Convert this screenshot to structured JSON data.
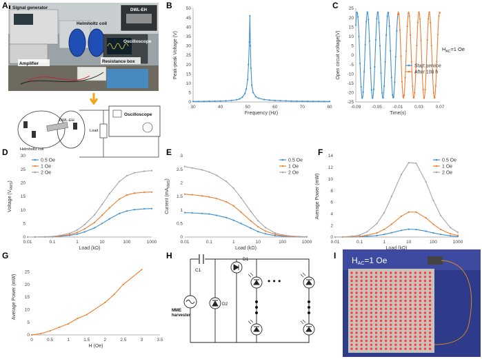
{
  "panels": {
    "A": {
      "letter": "A",
      "photo_labels": [
        "Signal generator",
        "DWL-EH",
        "Helmholtz coil",
        "Oscilloscope",
        "Amplifier",
        "Resistance box"
      ],
      "schematic_labels": {
        "device": "DWL-EH",
        "load": "Load",
        "scope": "Oscilloscope",
        "coil": "Helmholtz coil"
      }
    },
    "B": {
      "letter": "B"
    },
    "C": {
      "letter": "C",
      "annotation": "H"
    },
    "D": {
      "letter": "D"
    },
    "E": {
      "letter": "E"
    },
    "F": {
      "letter": "F"
    },
    "G": {
      "letter": "G"
    },
    "H": {
      "letter": "H",
      "labels": {
        "c1": "C1",
        "d1": "D1",
        "d2": "D2",
        "source": "MME harvester",
        "dots": "• • •"
      }
    },
    "I": {
      "letter": "I",
      "label_main": "H",
      "label_sub": "AC",
      "label_value": "=1 Oe"
    }
  },
  "chart_data": [
    {
      "panel": "B",
      "type": "line",
      "title": "",
      "xlabel": "Frequency (Hz)",
      "ylabel": "Peak-peak Voltage (V)",
      "xlim": [
        30,
        80
      ],
      "ylim": [
        0,
        50
      ],
      "xticks": [
        30,
        40,
        50,
        60,
        70,
        80
      ],
      "yticks": [
        0,
        5,
        10,
        15,
        20,
        25,
        30,
        35,
        40,
        45,
        50
      ],
      "grid": false,
      "color": "#3d8fd1",
      "x": [
        30,
        32,
        34,
        36,
        38,
        40,
        42,
        44,
        46,
        47,
        48,
        49,
        49.5,
        50,
        50.3,
        50.6,
        50.8,
        51,
        51.2,
        51.5,
        52,
        53,
        54,
        56,
        58,
        60,
        62,
        64,
        66,
        68,
        70,
        72,
        74,
        76,
        78,
        80
      ],
      "y": [
        0.3,
        0.3,
        0.35,
        0.4,
        0.45,
        0.5,
        0.6,
        0.8,
        1.2,
        1.6,
        2.5,
        4.5,
        7,
        12,
        20,
        32,
        46,
        30,
        18,
        9,
        5,
        2.8,
        2,
        1.3,
        1,
        0.8,
        0.7,
        0.6,
        0.5,
        0.45,
        0.4,
        0.4,
        0.35,
        0.35,
        0.3,
        0.3
      ]
    },
    {
      "panel": "C",
      "type": "line",
      "title": "",
      "xlabel": "Time(s)",
      "ylabel": "Open circuit voltage(V)",
      "xlim": [
        -0.09,
        0.07
      ],
      "ylim": [
        -25,
        25
      ],
      "xticks": [
        -0.09,
        -0.05,
        -0.01,
        0.03,
        0.07
      ],
      "yticks": [
        -25,
        -20,
        -15,
        -10,
        -5,
        0,
        5,
        10,
        15,
        20,
        25
      ],
      "grid": false,
      "legend_position": "right",
      "annotation": "HAC=1 Oe",
      "series": [
        {
          "name": "Start service",
          "color": "#3d8fd1",
          "t_start": -0.09,
          "t_end": -0.0101,
          "amplitude": 23,
          "frequency_hz": 51,
          "phase_ref": -0.0875
        },
        {
          "name": "After 100 h",
          "color": "#ed7d31",
          "t_start": -0.0101,
          "t_end": 0.07,
          "amplitude": 23,
          "frequency_hz": 51,
          "phase_ref": -0.0875
        }
      ]
    },
    {
      "panel": "D",
      "type": "line",
      "title": "",
      "xlabel": "Load (kΩ)",
      "ylabel": "Voltage (V",
      "ylabel_sub": "RMS",
      "ylabel_end": ")",
      "xscale": "log",
      "xlim": [
        0.01,
        1000
      ],
      "ylim": [
        0,
        30
      ],
      "xticks": [
        0.01,
        0.1,
        1,
        10,
        100,
        1000
      ],
      "yticks": [
        0,
        5,
        10,
        15,
        20,
        25,
        30
      ],
      "xticklabels": [
        "0.01",
        "0.1",
        "1",
        "10",
        "100",
        "1000"
      ],
      "grid": false,
      "legend_position": "top-left",
      "x": [
        0.01,
        0.02,
        0.05,
        0.1,
        0.2,
        0.5,
        1,
        2,
        5,
        10,
        20,
        50,
        100,
        200,
        500,
        1000
      ],
      "series": [
        {
          "name": "0.5 Oe",
          "color": "#3d8fd1",
          "values": [
            0,
            0,
            0.05,
            0.1,
            0.25,
            0.6,
            1.1,
            1.9,
            3.4,
            5,
            6.7,
            8.7,
            9.6,
            10.1,
            10.4,
            10.5
          ]
        },
        {
          "name": "1 Oe",
          "color": "#ed7d31",
          "values": [
            0,
            0,
            0.05,
            0.15,
            0.4,
            0.9,
            1.7,
            3,
            5.4,
            8,
            10.8,
            14,
            15.5,
            16.2,
            16.5,
            16.6
          ]
        },
        {
          "name": "2 Oe",
          "color": "#a5a5a5",
          "values": [
            0,
            0.02,
            0.1,
            0.2,
            0.6,
            1.4,
            2.6,
            4.6,
            8.2,
            12,
            16,
            20.5,
            22.6,
            23.7,
            24.3,
            24.5
          ]
        }
      ]
    },
    {
      "panel": "E",
      "type": "line",
      "title": "",
      "xlabel": "Load (kΩ)",
      "ylabel": "Current (mA",
      "ylabel_sub": "RMS",
      "ylabel_end": ")",
      "xscale": "log",
      "xlim": [
        0.01,
        1000
      ],
      "ylim": [
        0,
        3
      ],
      "xticks": [
        0.01,
        0.1,
        1,
        10,
        100,
        1000
      ],
      "yticks": [
        0,
        0.5,
        1,
        1.5,
        2,
        2.5,
        3
      ],
      "xticklabels": [
        "0.01",
        "0.1",
        "1",
        "10",
        "100",
        "1000"
      ],
      "grid": false,
      "legend_position": "top-right",
      "x": [
        0.01,
        0.02,
        0.05,
        0.1,
        0.2,
        0.5,
        1,
        2,
        5,
        10,
        20,
        50,
        100,
        200,
        500,
        1000
      ],
      "series": [
        {
          "name": "0.5 Oe",
          "color": "#3d8fd1",
          "values": [
            0.9,
            0.89,
            0.87,
            0.85,
            0.8,
            0.72,
            0.62,
            0.5,
            0.33,
            0.2,
            0.12,
            0.05,
            0.03,
            0.015,
            0.008,
            0.005
          ]
        },
        {
          "name": "1 Oe",
          "color": "#ed7d31",
          "values": [
            1.58,
            1.56,
            1.52,
            1.48,
            1.42,
            1.3,
            1.15,
            0.92,
            0.6,
            0.38,
            0.22,
            0.1,
            0.05,
            0.025,
            0.012,
            0.008
          ]
        },
        {
          "name": "2 Oe",
          "color": "#a5a5a5",
          "values": [
            2.6,
            2.55,
            2.48,
            2.4,
            2.28,
            2.05,
            1.8,
            1.45,
            0.95,
            0.6,
            0.35,
            0.15,
            0.08,
            0.04,
            0.02,
            0.01
          ]
        }
      ]
    },
    {
      "panel": "F",
      "type": "line",
      "title": "",
      "xlabel": "Load (kΩ)",
      "ylabel": "Average Power (mW)",
      "xscale": "log",
      "xlim": [
        0.01,
        1000
      ],
      "ylim": [
        0,
        14
      ],
      "xticks": [
        0.01,
        0.1,
        1,
        10,
        100,
        1000
      ],
      "yticks": [
        0,
        2,
        4,
        6,
        8,
        10,
        12,
        14
      ],
      "xticklabels": [
        "0.01",
        "0.1",
        "1",
        "10",
        "100",
        "1000"
      ],
      "grid": false,
      "legend_position": "top-right",
      "x": [
        0.01,
        0.02,
        0.05,
        0.1,
        0.2,
        0.5,
        1,
        2,
        5,
        10,
        20,
        50,
        100,
        200,
        500,
        1000
      ],
      "series": [
        {
          "name": "0.5 Oe",
          "color": "#3d8fd1",
          "values": [
            0,
            0,
            0.04,
            0.07,
            0.13,
            0.25,
            0.45,
            0.75,
            1.15,
            1.35,
            1.3,
            1.0,
            0.7,
            0.45,
            0.2,
            0.1
          ]
        },
        {
          "name": "1 Oe",
          "color": "#ed7d31",
          "values": [
            0,
            0.01,
            0.06,
            0.12,
            0.3,
            0.7,
            1.3,
            2.2,
            3.6,
            4.3,
            4.3,
            3.3,
            2.2,
            1.3,
            0.55,
            0.28
          ]
        },
        {
          "name": "2 Oe",
          "color": "#a5a5a5",
          "values": [
            0,
            0.02,
            0.15,
            0.35,
            0.9,
            2.3,
            4.2,
            7,
            10.8,
            12.8,
            12.7,
            9.5,
            6.3,
            3.7,
            1.6,
            0.8
          ]
        }
      ]
    },
    {
      "panel": "G",
      "type": "line",
      "title": "",
      "xlabel": "H (Oe)",
      "ylabel": "Average Power (mW)",
      "xlim": [
        0,
        3.5
      ],
      "ylim": [
        0,
        30
      ],
      "xticks": [
        0,
        0.5,
        1,
        1.5,
        2,
        2.5,
        3,
        3.5
      ],
      "yticks": [
        0,
        5,
        10,
        15,
        20,
        25
      ],
      "grid": false,
      "color": "#ed7d31",
      "x": [
        0,
        0.25,
        0.5,
        0.75,
        1.0,
        1.25,
        1.5,
        2.0,
        2.25,
        2.5,
        3.0
      ],
      "y": [
        0,
        0.5,
        1.6,
        3.0,
        4.4,
        6.5,
        8.0,
        12.8,
        16.0,
        20.0,
        25.8
      ]
    }
  ]
}
